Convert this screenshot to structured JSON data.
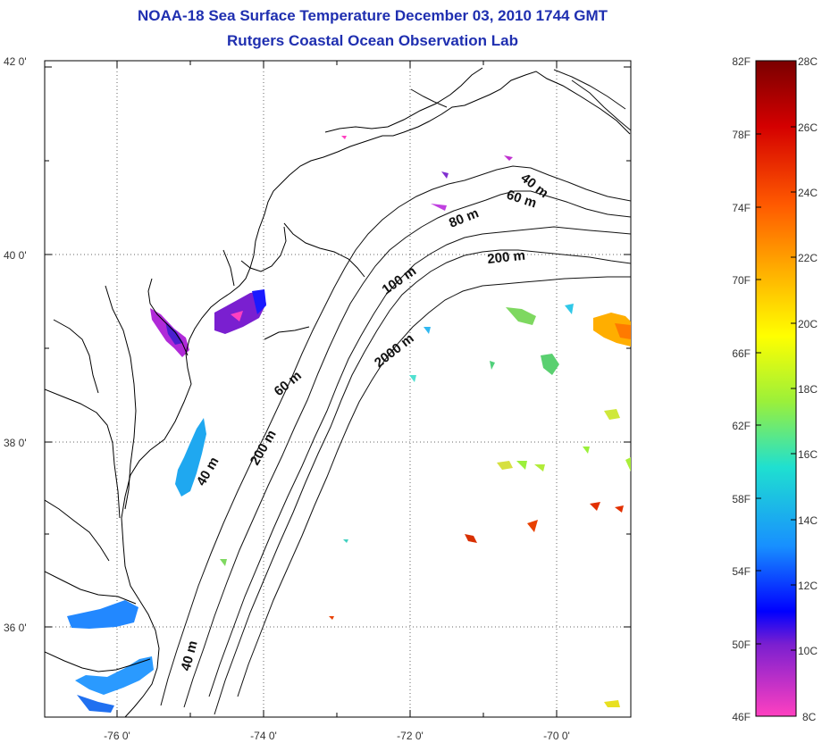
{
  "title": {
    "line1": "NOAA-18 Sea Surface Temperature December 03, 2010 1744 GMT",
    "line2": "Rutgers Coastal Ocean Observation Lab"
  },
  "axes": {
    "y_ticks": [
      "42 0'",
      "40 0'",
      "38 0'",
      "36 0'"
    ],
    "x_ticks": [
      "-76 0'",
      "-74 0'",
      "-72 0'",
      "-70 0'"
    ]
  },
  "isobaths": [
    "40 m",
    "60 m",
    "80 m",
    "200 m",
    "100 m",
    "2000 m",
    "60 m",
    "40 m",
    "200 m",
    "40 m"
  ],
  "colorbar": {
    "fahrenheit": [
      "82F",
      "78F",
      "74F",
      "70F",
      "66F",
      "62F",
      "58F",
      "54F",
      "50F",
      "46F"
    ],
    "celsius": [
      "28C",
      "26C",
      "24C",
      "22C",
      "20C",
      "18C",
      "16C",
      "14C",
      "12C",
      "10C",
      "8C"
    ]
  },
  "colors": {
    "title": "#1f2fb0",
    "colorbar_stops": [
      "#7a0000",
      "#d40000",
      "#ff5a00",
      "#ffae00",
      "#ffff00",
      "#9bf03a",
      "#1fe0d0",
      "#1890ff",
      "#0000ff",
      "#7a1fd0",
      "#ff40c0"
    ]
  }
}
